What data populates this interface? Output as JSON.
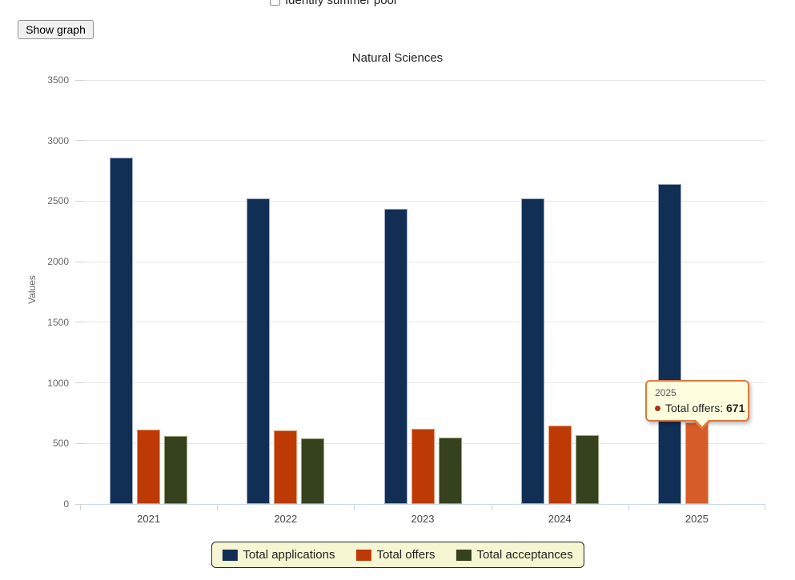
{
  "page": {
    "checkbox_label": "Identify summer pool",
    "show_graph_button": "Show graph"
  },
  "chart_data": {
    "type": "bar",
    "title": "Natural Sciences",
    "xlabel": "",
    "ylabel": "Values",
    "categories": [
      "2021",
      "2022",
      "2023",
      "2024",
      "2025"
    ],
    "series": [
      {
        "name": "Total applications",
        "color": "#112e55",
        "border_color": "#9fadc4",
        "values": [
          2860,
          2520,
          2440,
          2525,
          2640
        ]
      },
      {
        "name": "Total offers",
        "color": "#bd3a06",
        "border_color": "#e09a70",
        "values": [
          615,
          605,
          620,
          650,
          671
        ]
      },
      {
        "name": "Total acceptances",
        "color": "#36421d",
        "border_color": "#98a179",
        "values": [
          560,
          540,
          545,
          570,
          0
        ]
      }
    ],
    "ylim": [
      0,
      3500
    ],
    "ytick_step": 500,
    "grid": true,
    "legend_position": "bottom",
    "highlight": {
      "category_index": 4,
      "series_index": 1,
      "color": "#d65c2a",
      "border_color": "#e8a27a"
    }
  },
  "tooltip": {
    "title": "2025",
    "label": "Total offers: ",
    "value": "671",
    "marker_color": "#a5341c",
    "border_color": "#e0793c",
    "background": "#ffffe0"
  }
}
